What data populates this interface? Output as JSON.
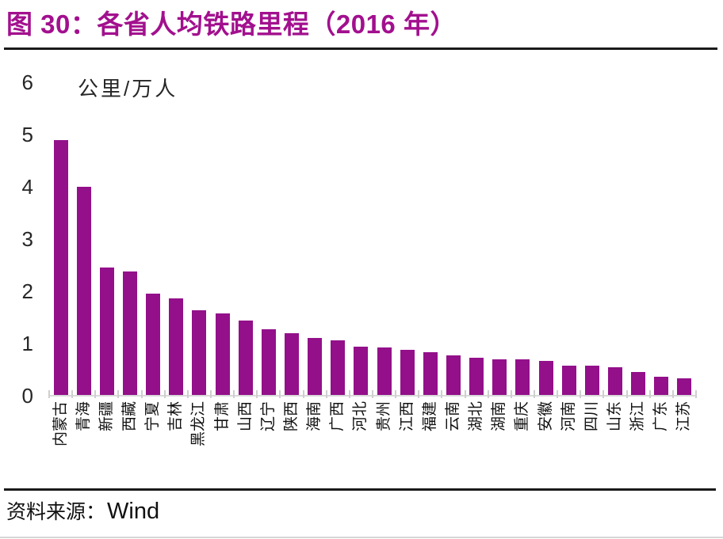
{
  "figure": {
    "title": "图 30：各省人均铁路里程（2016 年）",
    "source_label": "资料来源：",
    "source_value": "Wind"
  },
  "chart_data": {
    "type": "bar",
    "title": "各省人均铁路里程（2016 年）",
    "unit_label": "公里/万人",
    "ylabel": "公里/万人",
    "xlabel": "",
    "ylim": [
      0,
      6
    ],
    "yticks": [
      0,
      1,
      2,
      3,
      4,
      5,
      6
    ],
    "grid": false,
    "legend": false,
    "bar_color": "#93108a",
    "categories": [
      "内蒙古",
      "青海",
      "新疆",
      "西藏",
      "宁夏",
      "吉林",
      "黑龙江",
      "甘肃",
      "山西",
      "辽宁",
      "陕西",
      "海南",
      "广西",
      "河北",
      "贵州",
      "江西",
      "福建",
      "云南",
      "湖北",
      "湖南",
      "重庆",
      "安徽",
      "河南",
      "四川",
      "山东",
      "浙江",
      "广东",
      "江苏"
    ],
    "values": [
      4.9,
      4.0,
      2.45,
      2.38,
      1.95,
      1.87,
      1.64,
      1.58,
      1.44,
      1.27,
      1.19,
      1.11,
      1.06,
      0.94,
      0.92,
      0.88,
      0.83,
      0.77,
      0.72,
      0.7,
      0.7,
      0.67,
      0.58,
      0.57,
      0.55,
      0.45,
      0.37,
      0.34
    ]
  },
  "colors": {
    "accent": "#93108a",
    "title": "#a2108e",
    "baseline": "#d9d9d9",
    "rule": "#1a1a1a"
  }
}
